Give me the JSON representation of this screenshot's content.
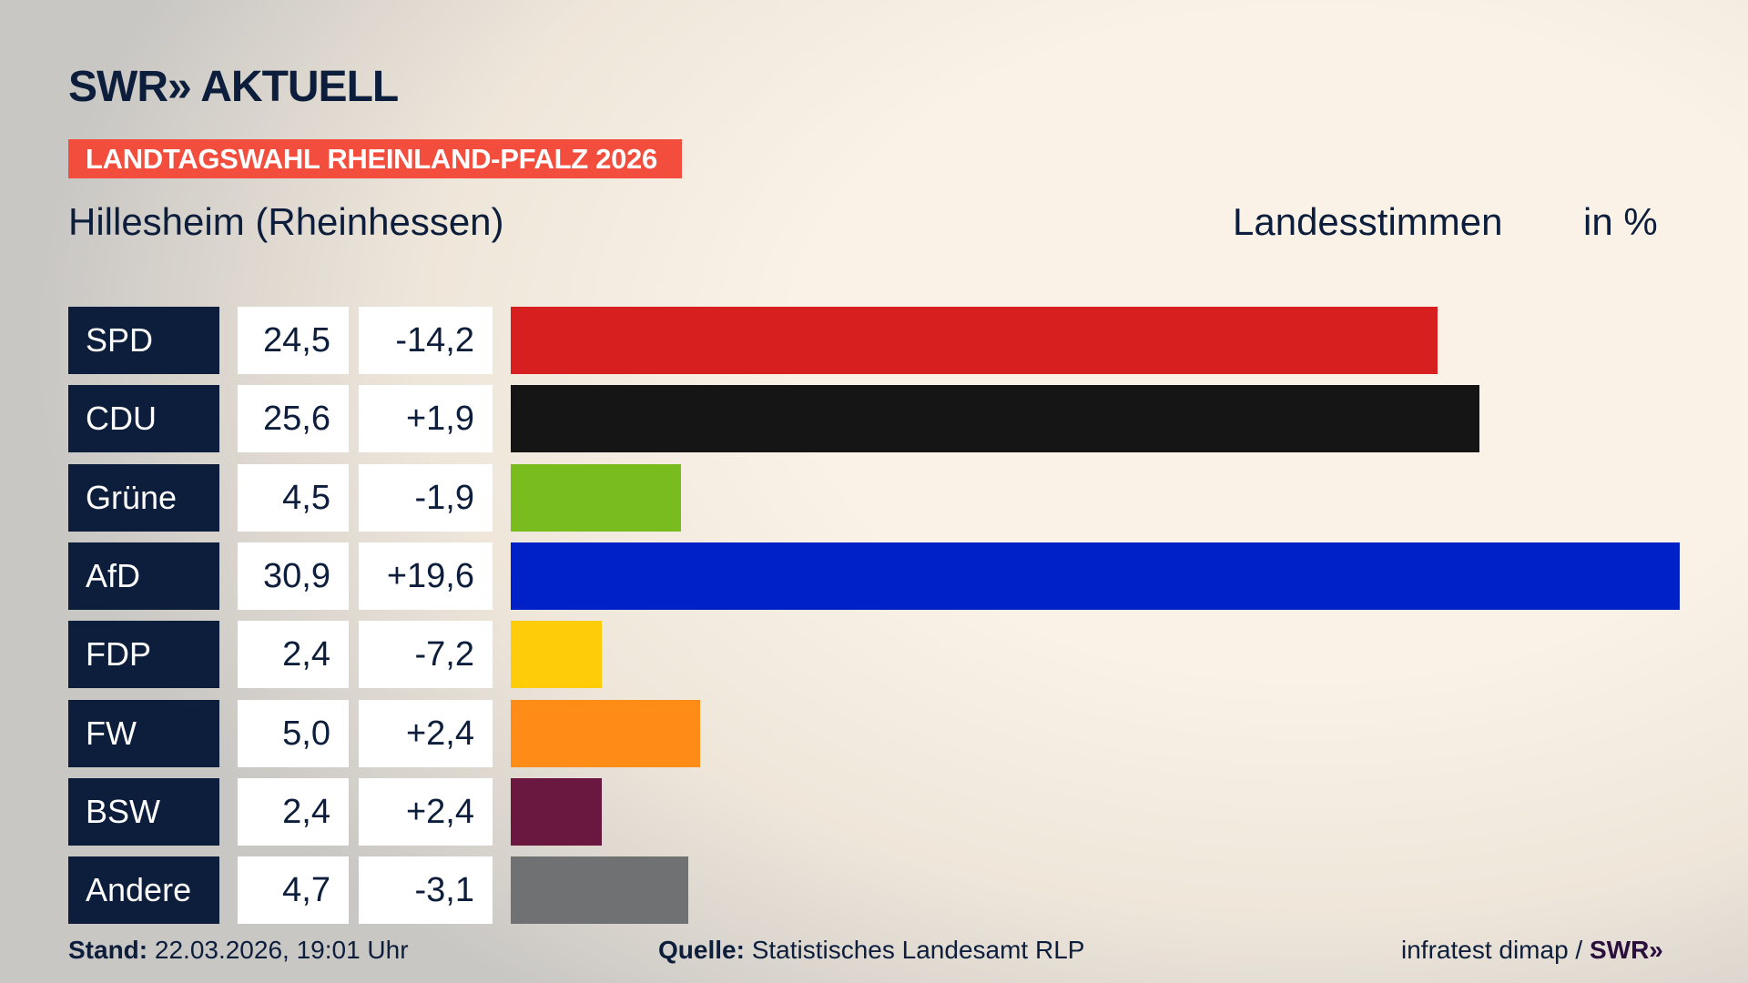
{
  "logo": "SWR» AKTUELL",
  "banner": "LANDTAGSWAHL RHEINLAND-PFALZ 2026",
  "subtitle": "Hillesheim (Rheinhessen)",
  "measure": "Landesstimmen",
  "unit": "in %",
  "chart_data": {
    "type": "bar",
    "orientation": "horizontal",
    "categories": [
      "SPD",
      "CDU",
      "Grüne",
      "AfD",
      "FDP",
      "FW",
      "BSW",
      "Andere"
    ],
    "values": [
      24.5,
      25.6,
      4.5,
      30.9,
      2.4,
      5.0,
      2.4,
      4.7
    ],
    "value_labels": [
      "24,5",
      "25,6",
      "4,5",
      "30,9",
      "2,4",
      "5,0",
      "2,4",
      "4,7"
    ],
    "diff_labels": [
      "-14,2",
      "+1,9",
      "-1,9",
      "+19,6",
      "-7,2",
      "+2,4",
      "+2,4",
      "-3,1"
    ],
    "colors": [
      "#d81f20",
      "#151515",
      "#78bc1e",
      "#0021c8",
      "#ffcc0a",
      "#ff8c17",
      "#6a1840",
      "#707172"
    ],
    "xlim": [
      0,
      30.9
    ],
    "grid": false
  },
  "footer": {
    "stand_label": "Stand:",
    "stand_value": "22.03.2026, 19:01 Uhr",
    "source_label": "Quelle:",
    "source_value": "Statistisches Landesamt RLP",
    "credit": "infratest dimap /",
    "credit_logo": "SWR»"
  }
}
